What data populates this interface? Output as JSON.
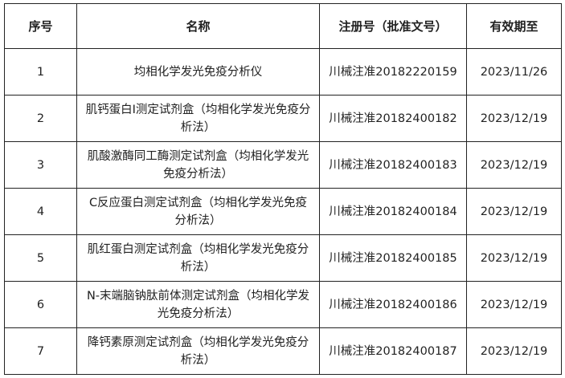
{
  "headers": [
    "序号",
    "名称",
    "注册号（批准文号）",
    "有效期至"
  ],
  "rows": [
    {
      "no": "1",
      "name": "均相化学发光免疫分析仪",
      "reg": "川械注准20182220159",
      "valid": "2023/11/26"
    },
    {
      "no": "2",
      "name": "肌钙蛋白I测定试剂盒（均相化学发光免疫分析法）",
      "reg": "川械注准20182400182",
      "valid": "2023/12/19"
    },
    {
      "no": "3",
      "name": "肌酸激酶同工酶测定试剂盒（均相化学发光免疫分析法）",
      "reg": "川械注准20182400183",
      "valid": "2023/12/19"
    },
    {
      "no": "4",
      "name": "C反应蛋白测定试剂盒（均相化学发光免疫分析法）",
      "reg": "川械注准20182400184",
      "valid": "2023/12/19"
    },
    {
      "no": "5",
      "name": "肌红蛋白测定试剂盒（均相化学发光免疫分析法）",
      "reg": "川械注准20182400185",
      "valid": "2023/12/19"
    },
    {
      "no": "6",
      "name": "N-末端脑钠肽前体测定试剂盒（均相化学发光免疫分析法）",
      "reg": "川械注准20182400186",
      "valid": "2023/12/19"
    },
    {
      "no": "7",
      "name": "降钙素原测定试剂盒（均相化学发光免疫分析法）",
      "reg": "川械注准20182400187",
      "valid": "2023/12/19"
    }
  ]
}
